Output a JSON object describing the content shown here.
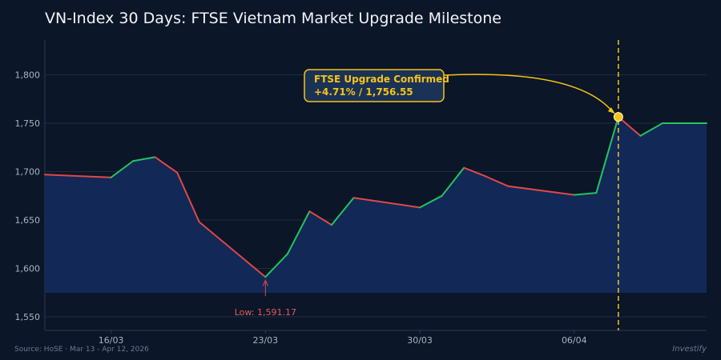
{
  "title": "VN-Index 30 Days: FTSE Vietnam Market Upgrade Milestone",
  "source": "Source: HoSE  ·  Mar 13 - Apr 12, 2026",
  "brand": "Investify",
  "colors": {
    "background": "#0b1628",
    "area_fill": "#13295a",
    "up": "#22c55e",
    "down": "#e04848",
    "highlight": "#f5c518",
    "grid": "#1e2c44"
  },
  "chart_data": {
    "type": "line",
    "x_labels": [
      "16/03",
      "23/03",
      "30/03",
      "06/04"
    ],
    "x_label_indices": [
      3,
      10,
      17,
      24
    ],
    "ylim": [
      1536,
      1836
    ],
    "yticks": [
      "1,550",
      "1,600",
      "1,650",
      "1,700",
      "1,750",
      "1,800"
    ],
    "ytick_values": [
      1550,
      1600,
      1650,
      1700,
      1750,
      1800
    ],
    "grid": true,
    "series": [
      {
        "values": [
          1697,
          null,
          null,
          1694,
          1711,
          1715,
          1699,
          1648,
          null,
          null,
          1591.17,
          1615,
          1659,
          1645,
          1673,
          null,
          null,
          1663,
          1675,
          1704,
          1695,
          1685,
          null,
          null,
          1676,
          1678,
          1756.55,
          1737,
          1750,
          null,
          1750
        ]
      }
    ],
    "annotations": {
      "low_label": "Low: 1,591.17",
      "low_index": 10,
      "upgrade_line1": "FTSE Upgrade Confirmed",
      "upgrade_line2": "+4.71%  /  1,756.55",
      "upgrade_index": 26
    }
  }
}
